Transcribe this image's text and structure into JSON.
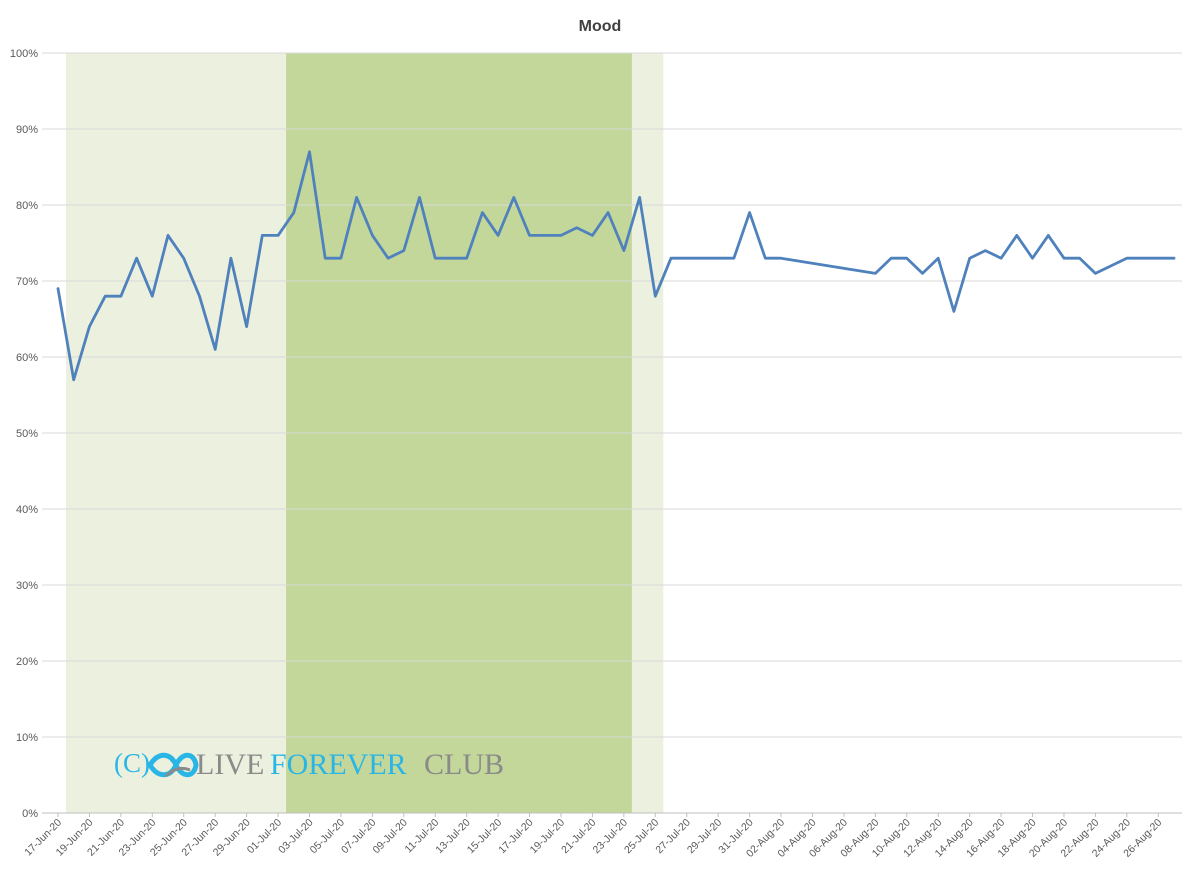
{
  "chart_data": {
    "type": "line",
    "title": "Mood",
    "xlabel": "",
    "ylabel": "",
    "ylim": [
      0,
      100
    ],
    "y_ticks": [
      "0%",
      "10%",
      "20%",
      "30%",
      "40%",
      "50%",
      "60%",
      "70%",
      "80%",
      "90%",
      "100%"
    ],
    "x_tick_labels": [
      "17-Jun-20",
      "19-Jun-20",
      "21-Jun-20",
      "23-Jun-20",
      "25-Jun-20",
      "27-Jun-20",
      "29-Jun-20",
      "01-Jul-20",
      "03-Jul-20",
      "05-Jul-20",
      "07-Jul-20",
      "09-Jul-20",
      "11-Jul-20",
      "13-Jul-20",
      "15-Jul-20",
      "17-Jul-20",
      "19-Jul-20",
      "21-Jul-20",
      "23-Jul-20",
      "25-Jul-20",
      "27-Jul-20",
      "29-Jul-20",
      "31-Jul-20",
      "02-Aug-20",
      "04-Aug-20",
      "06-Aug-20",
      "08-Aug-20",
      "10-Aug-20",
      "12-Aug-20",
      "14-Aug-20",
      "16-Aug-20",
      "18-Aug-20",
      "20-Aug-20",
      "22-Aug-20",
      "24-Aug-20",
      "26-Aug-20"
    ],
    "grid": true,
    "legend": "none",
    "shaded_regions": [
      {
        "start": "17-Jun-20",
        "end": "25-Jul-20",
        "color": "#ebf1de"
      },
      {
        "start": "01-Jul-20",
        "end": "23-Jul-20",
        "color": "#c4d79b"
      }
    ],
    "series": [
      {
        "color": "#4f81bd",
        "points": [
          [
            "17-Jun-20",
            69
          ],
          [
            "18-Jun-20",
            57
          ],
          [
            "19-Jun-20",
            64
          ],
          [
            "20-Jun-20",
            68
          ],
          [
            "21-Jun-20",
            68
          ],
          [
            "22-Jun-20",
            73
          ],
          [
            "23-Jun-20",
            68
          ],
          [
            "24-Jun-20",
            76
          ],
          [
            "25-Jun-20",
            73
          ],
          [
            "26-Jun-20",
            68
          ],
          [
            "27-Jun-20",
            61
          ],
          [
            "28-Jun-20",
            73
          ],
          [
            "29-Jun-20",
            64
          ],
          [
            "30-Jun-20",
            76
          ],
          [
            "01-Jul-20",
            76
          ],
          [
            "02-Jul-20",
            79
          ],
          [
            "03-Jul-20",
            87
          ],
          [
            "04-Jul-20",
            73
          ],
          [
            "05-Jul-20",
            73
          ],
          [
            "06-Jul-20",
            81
          ],
          [
            "07-Jul-20",
            76
          ],
          [
            "08-Jul-20",
            73
          ],
          [
            "09-Jul-20",
            74
          ],
          [
            "10-Jul-20",
            81
          ],
          [
            "11-Jul-20",
            73
          ],
          [
            "12-Jul-20",
            73
          ],
          [
            "13-Jul-20",
            73
          ],
          [
            "14-Jul-20",
            79
          ],
          [
            "15-Jul-20",
            76
          ],
          [
            "16-Jul-20",
            81
          ],
          [
            "17-Jul-20",
            76
          ],
          [
            "18-Jul-20",
            76
          ],
          [
            "19-Jul-20",
            76
          ],
          [
            "20-Jul-20",
            77
          ],
          [
            "21-Jul-20",
            76
          ],
          [
            "22-Jul-20",
            79
          ],
          [
            "23-Jul-20",
            74
          ],
          [
            "24-Jul-20",
            81
          ],
          [
            "25-Jul-20",
            68
          ],
          [
            "26-Jul-20",
            73
          ],
          [
            "27-Jul-20",
            73
          ],
          [
            "28-Jul-20",
            73
          ],
          [
            "29-Jul-20",
            73
          ],
          [
            "30-Jul-20",
            73
          ],
          [
            "31-Jul-20",
            79
          ],
          [
            "01-Aug-20",
            73
          ],
          [
            "02-Aug-20",
            73
          ],
          [
            "08-Aug-20",
            71
          ],
          [
            "09-Aug-20",
            73
          ],
          [
            "10-Aug-20",
            73
          ],
          [
            "11-Aug-20",
            71
          ],
          [
            "12-Aug-20",
            73
          ],
          [
            "13-Aug-20",
            66
          ],
          [
            "14-Aug-20",
            73
          ],
          [
            "15-Aug-20",
            74
          ],
          [
            "16-Aug-20",
            73
          ],
          [
            "17-Aug-20",
            76
          ],
          [
            "18-Aug-20",
            73
          ],
          [
            "19-Aug-20",
            76
          ],
          [
            "20-Aug-20",
            73
          ],
          [
            "21-Aug-20",
            73
          ],
          [
            "22-Aug-20",
            71
          ],
          [
            "24-Aug-20",
            73
          ],
          [
            "25-Aug-20",
            73
          ],
          [
            "26-Aug-20",
            73
          ],
          [
            "27-Aug-20",
            73
          ]
        ]
      }
    ]
  },
  "watermark": {
    "copyright": "(C)",
    "icon": "infinity-icon",
    "word1": "LIVE",
    "word2": "FOREVER",
    "word3": "CLUB"
  }
}
